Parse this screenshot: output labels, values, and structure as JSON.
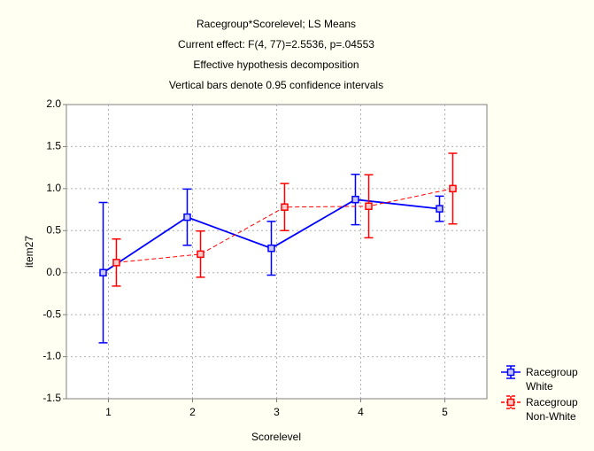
{
  "chart_data": {
    "type": "line",
    "title": "Racegroup*Scorelevel; LS Means",
    "subtitles": [
      "Current effect: F(4, 77)=2.5536, p=.04553",
      "Effective hypothesis decomposition",
      "Vertical bars denote 0.95 confidence intervals"
    ],
    "xlabel": "Scorelevel",
    "ylabel": "item27",
    "x": [
      1,
      2,
      3,
      4,
      5
    ],
    "xlim": [
      0.5,
      5.5
    ],
    "xticks": [
      1,
      2,
      3,
      4,
      5
    ],
    "ylim": [
      -1.5,
      2.0
    ],
    "yticks": [
      {
        "value": 2.0,
        "label": "2.0"
      },
      1.5,
      {
        "value": 1.0,
        "label": "1.0"
      },
      0.5,
      {
        "value": 0.0,
        "label": "0.0"
      },
      -0.5,
      {
        "value": -1.0,
        "label": "-1.0"
      },
      -1.5
    ],
    "grid": true,
    "legend": "bottom-right",
    "series": [
      {
        "name": "Racegroup White",
        "color": "#0000ff",
        "values": [
          0.0,
          0.66,
          0.29,
          0.87,
          0.76
        ],
        "errors": [
          0.835,
          0.335,
          0.32,
          0.3,
          0.15
        ]
      },
      {
        "name": "Racegroup Non-White",
        "color": "#ff0000",
        "values": [
          0.12,
          0.22,
          0.78,
          0.79,
          1.0
        ],
        "errors": [
          0.28,
          0.275,
          0.28,
          0.375,
          0.42
        ]
      }
    ]
  }
}
